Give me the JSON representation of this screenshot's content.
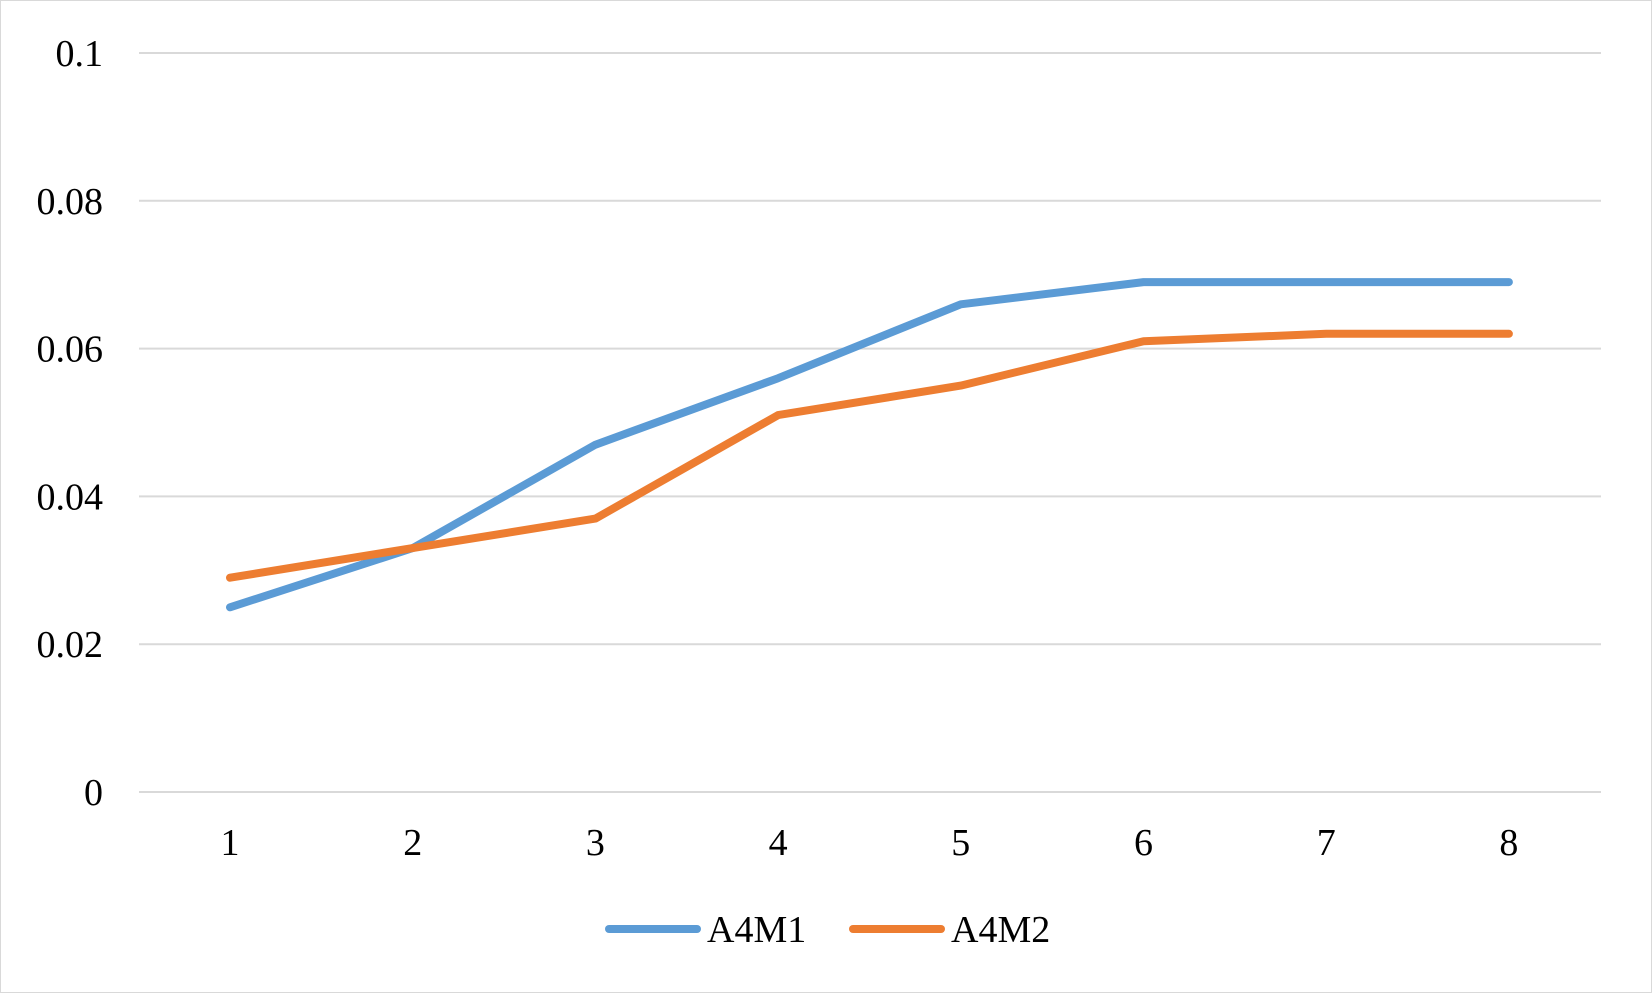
{
  "chart_data": {
    "type": "line",
    "title": "",
    "xlabel": "",
    "ylabel": "",
    "categories": [
      "1",
      "2",
      "3",
      "4",
      "5",
      "6",
      "7",
      "8"
    ],
    "yticks": [
      "0",
      "0.02",
      "0.04",
      "0.06",
      "0.08",
      "0.1"
    ],
    "ylim": [
      0,
      0.1
    ],
    "grid": true,
    "legend_position": "bottom",
    "series": [
      {
        "name": "A4M1",
        "color": "#5b9bd5",
        "values": [
          0.025,
          0.033,
          0.047,
          0.056,
          0.066,
          0.069,
          0.069,
          0.069
        ]
      },
      {
        "name": "A4M2",
        "color": "#ed7d31",
        "values": [
          0.029,
          0.033,
          0.037,
          0.051,
          0.055,
          0.061,
          0.062,
          0.062
        ]
      }
    ]
  }
}
